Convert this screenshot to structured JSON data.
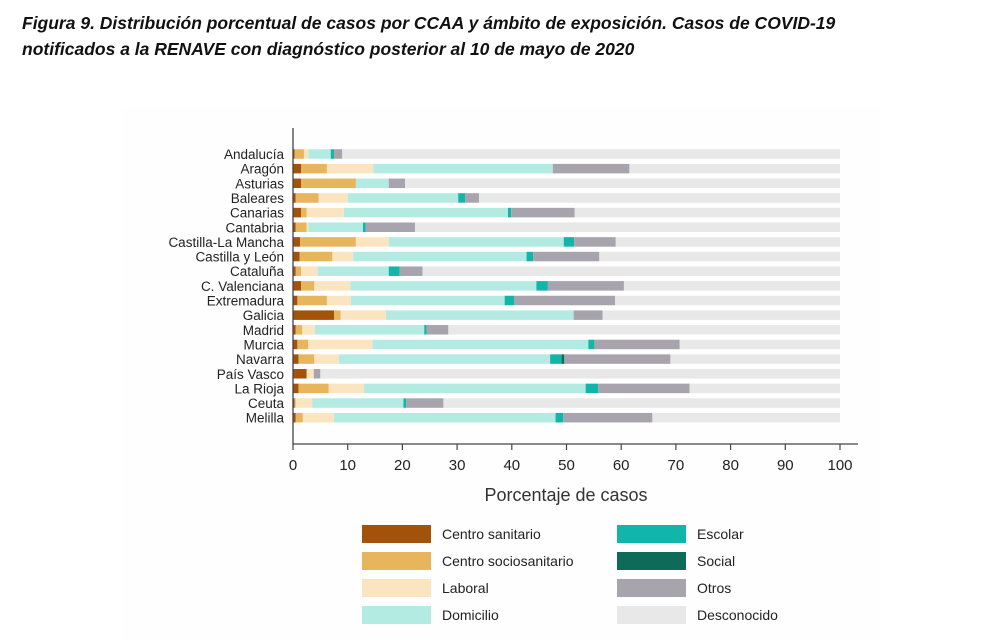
{
  "caption": {
    "line1": "Figura 9. Distribución porcentual de casos por CCAA y ámbito de exposición. Casos de COVID-19",
    "line2": "notificados a la RENAVE con diagnóstico posterior al 10 de mayo de 2020"
  },
  "chart_data": {
    "type": "bar",
    "orientation": "horizontal",
    "stacked": true,
    "xlabel": "Porcentaje de casos",
    "ylabel": "",
    "xlim": [
      0,
      100
    ],
    "xticks": [
      0,
      10,
      20,
      30,
      40,
      50,
      60,
      70,
      80,
      90,
      100
    ],
    "grid": false,
    "legend_position": "bottom",
    "categories": [
      "Andalucía",
      "Aragón",
      "Asturias",
      "Baleares",
      "Canarias",
      "Cantabria",
      "Castilla-La Mancha",
      "Castilla y León",
      "Cataluña",
      "C. Valenciana",
      "Extremadura",
      "Galicia",
      "Madrid",
      "Murcia",
      "Navarra",
      "País Vasco",
      "La Rioja",
      "Ceuta",
      "Melilla"
    ],
    "series": [
      {
        "name": "Centro sanitario",
        "color": "#a3520a",
        "values": [
          0.3,
          1.5,
          1.5,
          0.5,
          1.5,
          0.5,
          1.3,
          1.2,
          0.5,
          1.5,
          0.8,
          7.5,
          0.5,
          0.8,
          1.0,
          2.5,
          1.0,
          0.3,
          0.5
        ]
      },
      {
        "name": "Centro sociosanitario",
        "color": "#e6b55c",
        "values": [
          1.7,
          4.7,
          10.0,
          4.2,
          1.0,
          2.0,
          10.2,
          6.0,
          1.0,
          2.4,
          5.4,
          1.2,
          1.2,
          2.0,
          2.9,
          0.0,
          5.5,
          0.2,
          1.3
        ]
      },
      {
        "name": "Laboral",
        "color": "#fbe5c0",
        "values": [
          0.8,
          8.5,
          0.0,
          5.3,
          6.8,
          0.3,
          6.0,
          3.8,
          3.0,
          6.6,
          4.4,
          8.3,
          2.3,
          11.7,
          4.5,
          1.3,
          6.5,
          3.0,
          5.7
        ]
      },
      {
        "name": "Domicilio",
        "color": "#b3ebe3",
        "values": [
          4.1,
          32.8,
          6.0,
          20.2,
          30.0,
          10.0,
          32.0,
          31.7,
          13.0,
          34.0,
          28.1,
          34.3,
          20.0,
          39.5,
          38.6,
          0.0,
          40.5,
          16.7,
          40.5
        ]
      },
      {
        "name": "Escolar",
        "color": "#11b5a9",
        "values": [
          0.6,
          0.0,
          0.0,
          1.3,
          0.6,
          0.5,
          1.9,
          1.2,
          2.0,
          2.1,
          1.7,
          0.0,
          0.4,
          1.1,
          2.1,
          0.0,
          2.3,
          0.5,
          1.4
        ]
      },
      {
        "name": "Social",
        "color": "#0e6b5a",
        "values": [
          0.0,
          0.0,
          0.0,
          0.0,
          0.0,
          0.0,
          0.0,
          0.0,
          0.0,
          0.0,
          0.0,
          0.0,
          0.0,
          0.0,
          0.5,
          0.0,
          0.0,
          0.0,
          0.0
        ]
      },
      {
        "name": "Otros",
        "color": "#a7a4ae",
        "values": [
          1.5,
          14.0,
          3.0,
          2.5,
          11.6,
          9.0,
          7.6,
          12.1,
          4.2,
          13.9,
          18.5,
          5.3,
          4.0,
          15.6,
          19.4,
          1.2,
          16.7,
          6.8,
          16.3
        ]
      },
      {
        "name": "Desconocido",
        "color": "#e8e8e8",
        "values": [
          91.0,
          38.5,
          79.5,
          66.0,
          48.5,
          77.7,
          41.0,
          44.0,
          76.3,
          39.5,
          41.1,
          43.4,
          71.6,
          29.3,
          31.0,
          95.0,
          27.5,
          72.5,
          34.3
        ]
      }
    ]
  }
}
